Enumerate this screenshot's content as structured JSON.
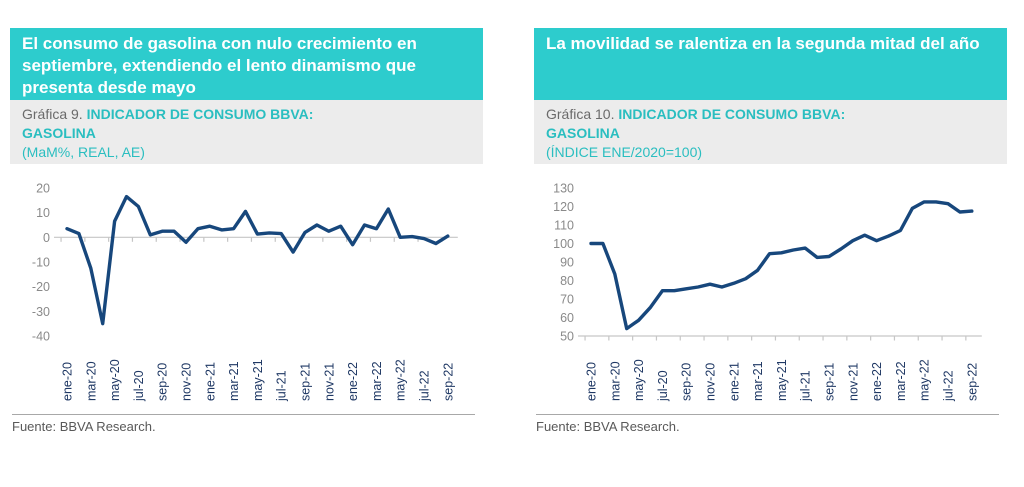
{
  "page": {
    "background": "#ffffff"
  },
  "colors": {
    "banner_bg": "#2DCCCD",
    "banner_text": "#FFFFFF",
    "caption_bg": "#ECECEC",
    "caption_label": "#6A6A6A",
    "caption_title": "#2ABEC0",
    "line": "#17477C",
    "x_label": "#1F3864",
    "y_label": "#8A8A8A",
    "axis": "#C6C6C6",
    "source_text": "#595959"
  },
  "charts": [
    {
      "banner": "El consumo de gasolina con nulo crecimiento en septiembre, extendiendo el lento dinamismo que presenta desde mayo",
      "graph_label": "Gráfica 9.",
      "title_line1": "INDICADOR DE CONSUMO BBVA:",
      "title_line2": "GASOLINA",
      "subtitle": "(MaM%, REAL, AE)",
      "source": "Fuente: BBVA Research."
    },
    {
      "banner": "La movilidad se ralentiza en la segunda mitad del año",
      "graph_label": "Gráfica 10.",
      "title_line1": "INDICADOR DE CONSUMO BBVA:",
      "title_line2": "GASOLINA",
      "subtitle": "(ÍNDICE ENE/2020=100)",
      "source": "Fuente: BBVA Research."
    }
  ],
  "chart_data": [
    {
      "type": "line",
      "title": "INDICADOR DE CONSUMO BBVA: GASOLINA",
      "subtitle_units": "(MaM%, REAL, AE)",
      "categories": [
        "ene-20",
        "feb-20",
        "mar-20",
        "abr-20",
        "may-20",
        "jun-20",
        "jul-20",
        "ago-20",
        "sep-20",
        "oct-20",
        "nov-20",
        "dic-20",
        "ene-21",
        "feb-21",
        "mar-21",
        "abr-21",
        "may-21",
        "jun-21",
        "jul-21",
        "ago-21",
        "sep-21",
        "oct-21",
        "nov-21",
        "dic-21",
        "ene-22",
        "feb-22",
        "mar-22",
        "abr-22",
        "may-22",
        "jun-22",
        "jul-22",
        "ago-22",
        "sep-22"
      ],
      "values": [
        3.5,
        1.5,
        -12.5,
        -35,
        6.5,
        16.5,
        12.5,
        1,
        2.5,
        2.5,
        -2,
        3.5,
        4.5,
        3,
        3.5,
        10.5,
        1.3,
        1.8,
        1.5,
        -6,
        2,
        5,
        2.5,
        4.5,
        -3,
        5,
        3.5,
        11.5,
        0,
        0.3,
        -0.5,
        -2.5,
        0.5
      ],
      "ylim": [
        -40,
        20
      ],
      "ytick_step": 10,
      "axis_at": 0,
      "xtick_every": 2,
      "grid": false,
      "legend": null
    },
    {
      "type": "line",
      "title": "INDICADOR DE CONSUMO BBVA: GASOLINA",
      "subtitle_units": "(ÍNDICE ENE/2020=100)",
      "categories": [
        "ene-20",
        "feb-20",
        "mar-20",
        "abr-20",
        "may-20",
        "jun-20",
        "jul-20",
        "ago-20",
        "sep-20",
        "oct-20",
        "nov-20",
        "dic-20",
        "ene-21",
        "feb-21",
        "mar-21",
        "abr-21",
        "may-21",
        "jun-21",
        "jul-21",
        "ago-21",
        "sep-21",
        "oct-21",
        "nov-21",
        "dic-21",
        "ene-22",
        "feb-22",
        "mar-22",
        "abr-22",
        "may-22",
        "jun-22",
        "jul-22",
        "ago-22",
        "sep-22"
      ],
      "values": [
        100,
        100,
        83.5,
        54,
        58.5,
        65.5,
        74.5,
        74.5,
        75.5,
        76.5,
        78,
        76.5,
        78.5,
        81,
        85.5,
        94.5,
        95,
        96.5,
        97.5,
        92.5,
        93,
        97,
        101.5,
        104.5,
        101.5,
        104,
        107,
        119,
        122.5,
        122.5,
        121.5,
        117,
        117.5
      ],
      "ylim": [
        50,
        130
      ],
      "ytick_step": 10,
      "axis_at": 50,
      "xtick_every": 2,
      "grid": false,
      "legend": null
    }
  ]
}
